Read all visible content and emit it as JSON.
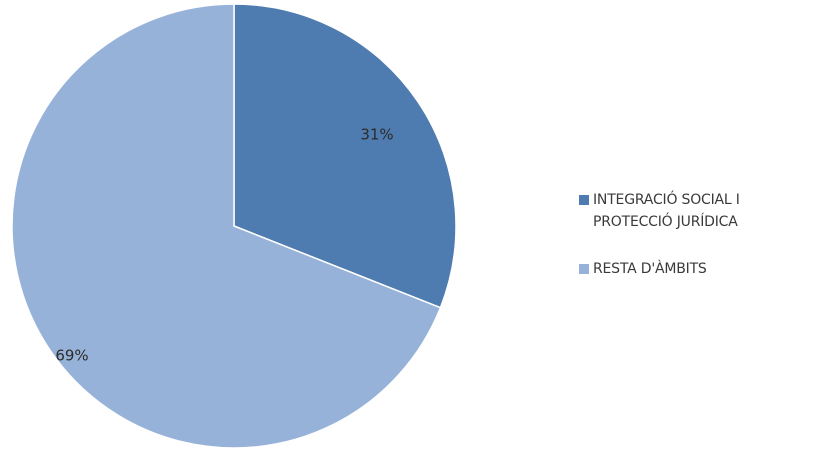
{
  "chart_data": {
    "type": "pie",
    "slices": [
      {
        "label": "INTEGRACIÓ SOCIAL I PROTECCIÓ JURÍDICA",
        "label_lines": [
          "INTEGRACIÓ SOCIAL I",
          "PROTECCIÓ JURÍDICA"
        ],
        "value": 31,
        "value_label": "31%",
        "color": "#4f7cb0"
      },
      {
        "label": "RESTA D'ÀMBITS",
        "label_lines": [
          "RESTA D'ÀMBITS"
        ],
        "value": 69,
        "value_label": "69%",
        "color": "#97b2d8"
      }
    ],
    "start_angle": "12 o'clock",
    "direction": "clockwise",
    "legend_position": "right",
    "title": ""
  }
}
